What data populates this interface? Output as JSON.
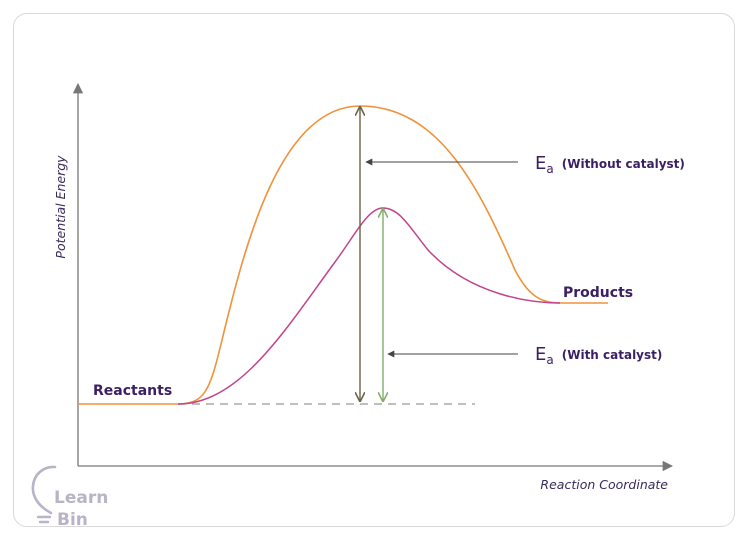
{
  "diagram": {
    "y_axis_title": "Potential Energy",
    "x_axis_title": "Reaction Coordinate",
    "reactants_label": "Reactants",
    "products_label": "Products",
    "ea_symbol": "E",
    "ea_subscript": "a",
    "ea_without_note": "(Without catalyst)",
    "ea_with_note": "(With catalyst)",
    "colors": {
      "uncatalyzed_curve": "#f0923a",
      "catalyzed_curve": "#c0458c",
      "uncatalyzed_arrow": "#6b6147",
      "catalyzed_arrow": "#7fae6a",
      "axis": "#777777",
      "label_text": "#3b1f63"
    }
  },
  "logo": {
    "line1": "Learn",
    "line2": "Bin"
  }
}
